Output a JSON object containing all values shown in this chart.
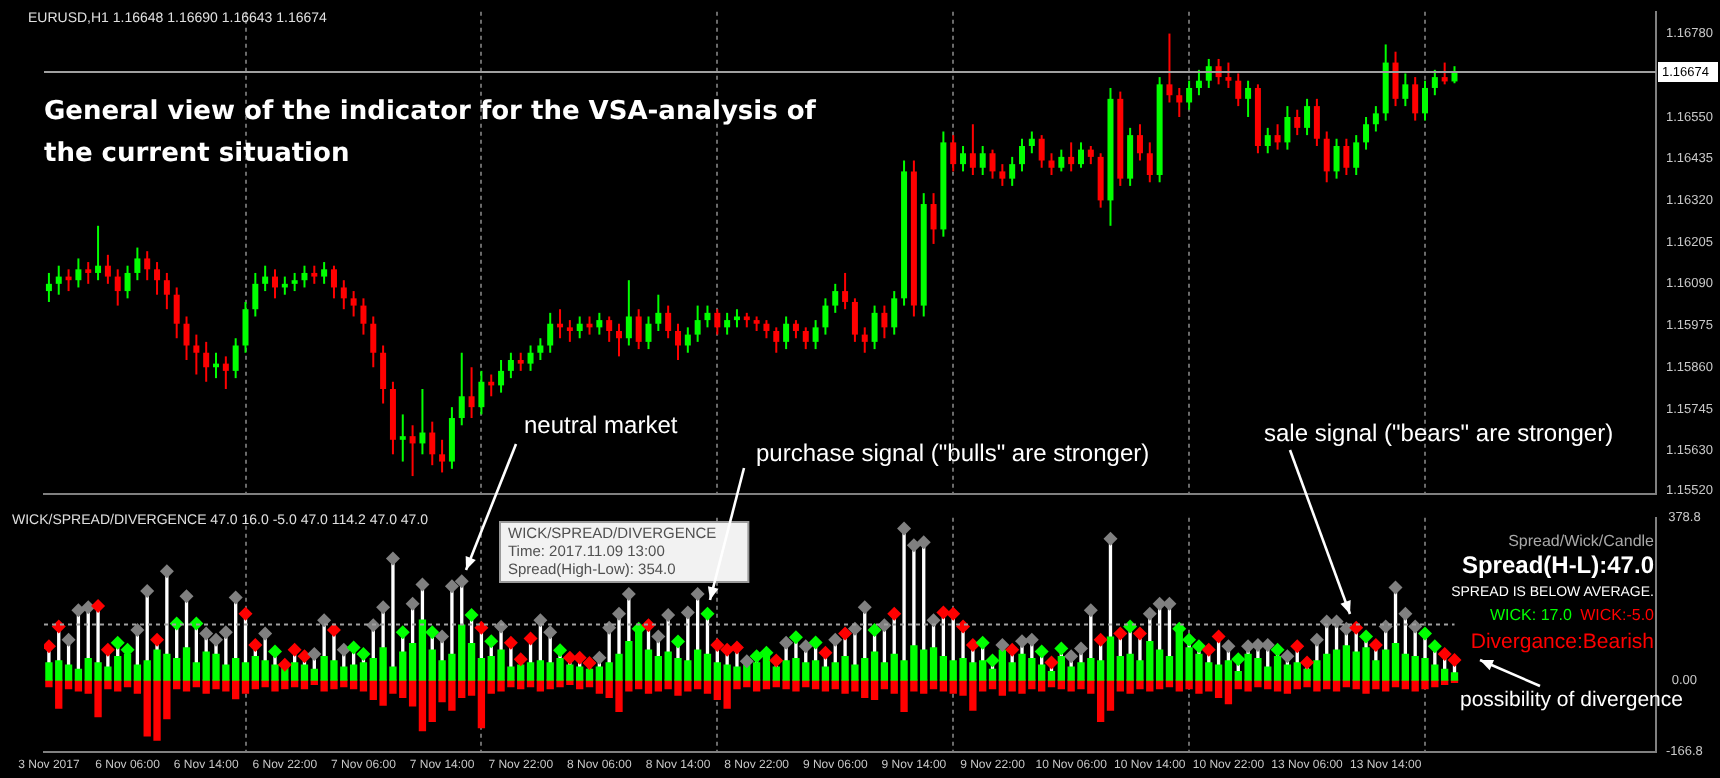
{
  "chart_data": [
    {
      "type": "candlestick",
      "title": "General view of the indicator for the VSA-analysis of the current situation",
      "subtitle": "EURUSD,H1 1.16648 1.16690 1.16643 1.16674",
      "annotations": [
        "neutral market",
        "purchase signal (\"bulls\" are stronger)",
        "sale signal (\"bears\" are stronger)"
      ],
      "categories": [
        null,
        null,
        null,
        null,
        null,
        null,
        null,
        null,
        null,
        null,
        null,
        null,
        null,
        null,
        null,
        null,
        null,
        null,
        null,
        null,
        null,
        null,
        null,
        null,
        null,
        null,
        null,
        null,
        null,
        null,
        null,
        null,
        null,
        null,
        null,
        null,
        null,
        null,
        null,
        null,
        null,
        null,
        null,
        null,
        null,
        null,
        null,
        null,
        null,
        null,
        null,
        null,
        null,
        null,
        null,
        null,
        null,
        null,
        null,
        null,
        null,
        null,
        null,
        null,
        null,
        null,
        null,
        null,
        null,
        null,
        null,
        null,
        null,
        null,
        null,
        null,
        null,
        null,
        null,
        null,
        null,
        null,
        null,
        null,
        null,
        null,
        null,
        null,
        null,
        null,
        null,
        null,
        null,
        null,
        null,
        null,
        null,
        null,
        null,
        null,
        null,
        null,
        null,
        null,
        null,
        null,
        null,
        null,
        null,
        null,
        null,
        null,
        null,
        null,
        null,
        null,
        null,
        null,
        null,
        null,
        null,
        null,
        null,
        null,
        null,
        null,
        null,
        null,
        null,
        null,
        null,
        null,
        null,
        null,
        null,
        null,
        null,
        null,
        null,
        null,
        null,
        null,
        null,
        null,
        null,
        null,
        null,
        null,
        null,
        null,
        null,
        null,
        null,
        null,
        null,
        null,
        null,
        null,
        null,
        null,
        null,
        null,
        null,
        null
      ],
      "ohlc": [
        [
          1.1607,
          1.1612,
          1.1604,
          1.1609
        ],
        [
          1.1609,
          1.1614,
          1.1606,
          1.1611
        ],
        [
          1.1611,
          1.1613,
          1.1607,
          1.161
        ],
        [
          1.161,
          1.1616,
          1.1608,
          1.1613
        ],
        [
          1.1613,
          1.1615,
          1.1609,
          1.1612
        ],
        [
          1.1612,
          1.1625,
          1.161,
          1.1614
        ],
        [
          1.1614,
          1.1617,
          1.1609,
          1.1611
        ],
        [
          1.1611,
          1.1613,
          1.1603,
          1.1607
        ],
        [
          1.1607,
          1.1614,
          1.1605,
          1.1612
        ],
        [
          1.1612,
          1.1619,
          1.161,
          1.1616
        ],
        [
          1.1616,
          1.1618,
          1.161,
          1.1613
        ],
        [
          1.1613,
          1.1615,
          1.1606,
          1.161
        ],
        [
          1.161,
          1.1612,
          1.1602,
          1.1606
        ],
        [
          1.1606,
          1.1608,
          1.1594,
          1.1598
        ],
        [
          1.1598,
          1.16,
          1.1588,
          1.1592
        ],
        [
          1.1592,
          1.1595,
          1.1584,
          1.159
        ],
        [
          1.159,
          1.1593,
          1.1582,
          1.1586
        ],
        [
          1.1586,
          1.159,
          1.1583,
          1.1587
        ],
        [
          1.1587,
          1.1589,
          1.158,
          1.1585
        ],
        [
          1.1585,
          1.1594,
          1.1583,
          1.1592
        ],
        [
          1.1592,
          1.1604,
          1.159,
          1.1602
        ],
        [
          1.1602,
          1.1612,
          1.16,
          1.1609
        ],
        [
          1.1609,
          1.1614,
          1.1607,
          1.1611
        ],
        [
          1.1611,
          1.1613,
          1.1605,
          1.1608
        ],
        [
          1.1608,
          1.1611,
          1.1606,
          1.1609
        ],
        [
          1.1609,
          1.1612,
          1.1607,
          1.161
        ],
        [
          1.161,
          1.1614,
          1.1608,
          1.1612
        ],
        [
          1.1612,
          1.1614,
          1.1609,
          1.1611
        ],
        [
          1.1611,
          1.1615,
          1.1609,
          1.1613
        ],
        [
          1.1613,
          1.1614,
          1.1605,
          1.1608
        ],
        [
          1.1608,
          1.161,
          1.1602,
          1.1605
        ],
        [
          1.1605,
          1.1607,
          1.16,
          1.1603
        ],
        [
          1.1603,
          1.1605,
          1.1595,
          1.1598
        ],
        [
          1.1598,
          1.16,
          1.1586,
          1.159
        ],
        [
          1.159,
          1.1592,
          1.1576,
          1.158
        ],
        [
          1.158,
          1.1582,
          1.1562,
          1.1566
        ],
        [
          1.1566,
          1.1573,
          1.156,
          1.1567
        ],
        [
          1.1567,
          1.157,
          1.1556,
          1.1565
        ],
        [
          1.1565,
          1.158,
          1.1562,
          1.1568
        ],
        [
          1.1568,
          1.1571,
          1.1559,
          1.1562
        ],
        [
          1.1562,
          1.1566,
          1.1557,
          1.156
        ],
        [
          1.156,
          1.1575,
          1.1558,
          1.1572
        ],
        [
          1.1572,
          1.159,
          1.157,
          1.1578
        ],
        [
          1.1578,
          1.1586,
          1.1572,
          1.1575
        ],
        [
          1.1575,
          1.1585,
          1.1573,
          1.1582
        ],
        [
          1.1582,
          1.1584,
          1.1578,
          1.1581
        ],
        [
          1.1581,
          1.1588,
          1.1579,
          1.1585
        ],
        [
          1.1585,
          1.159,
          1.1583,
          1.1588
        ],
        [
          1.1588,
          1.159,
          1.1585,
          1.1587
        ],
        [
          1.1587,
          1.1592,
          1.1585,
          1.159
        ],
        [
          1.159,
          1.1594,
          1.1588,
          1.1592
        ],
        [
          1.1592,
          1.1601,
          1.159,
          1.1598
        ],
        [
          1.1598,
          1.1602,
          1.1594,
          1.1597
        ],
        [
          1.1597,
          1.1599,
          1.1593,
          1.1596
        ],
        [
          1.1596,
          1.16,
          1.1594,
          1.1598
        ],
        [
          1.1598,
          1.16,
          1.1595,
          1.1597
        ],
        [
          1.1597,
          1.1601,
          1.1595,
          1.1599
        ],
        [
          1.1599,
          1.16,
          1.1593,
          1.1596
        ],
        [
          1.1596,
          1.1598,
          1.1589,
          1.1594
        ],
        [
          1.1594,
          1.161,
          1.1592,
          1.16
        ],
        [
          1.16,
          1.1602,
          1.1591,
          1.1593
        ],
        [
          1.1593,
          1.16,
          1.1591,
          1.1598
        ],
        [
          1.1598,
          1.1606,
          1.1596,
          1.1601
        ],
        [
          1.1601,
          1.1603,
          1.1594,
          1.1596
        ],
        [
          1.1596,
          1.1598,
          1.1588,
          1.1592
        ],
        [
          1.1592,
          1.1597,
          1.159,
          1.1595
        ],
        [
          1.1595,
          1.1603,
          1.1593,
          1.1599
        ],
        [
          1.1599,
          1.1603,
          1.1597,
          1.1601
        ],
        [
          1.1601,
          1.1602,
          1.1595,
          1.1597
        ],
        [
          1.1597,
          1.1601,
          1.1595,
          1.1599
        ],
        [
          1.1599,
          1.1602,
          1.1597,
          1.16
        ],
        [
          1.16,
          1.1601,
          1.1597,
          1.1599
        ],
        [
          1.1599,
          1.16,
          1.1596,
          1.1598
        ],
        [
          1.1598,
          1.1599,
          1.1594,
          1.1596
        ],
        [
          1.1596,
          1.1597,
          1.159,
          1.1593
        ],
        [
          1.1593,
          1.16,
          1.1591,
          1.1598
        ],
        [
          1.1598,
          1.1599,
          1.1594,
          1.1596
        ],
        [
          1.1596,
          1.1597,
          1.1591,
          1.1593
        ],
        [
          1.1593,
          1.1599,
          1.1591,
          1.1597
        ],
        [
          1.1597,
          1.1605,
          1.1595,
          1.1603
        ],
        [
          1.1603,
          1.1609,
          1.1601,
          1.1607
        ],
        [
          1.1607,
          1.1612,
          1.1602,
          1.1604
        ],
        [
          1.1604,
          1.1605,
          1.1593,
          1.1595
        ],
        [
          1.1595,
          1.1597,
          1.159,
          1.1593
        ],
        [
          1.1593,
          1.1603,
          1.1591,
          1.1601
        ],
        [
          1.1601,
          1.1603,
          1.1594,
          1.1597
        ],
        [
          1.1597,
          1.1607,
          1.1595,
          1.1605
        ],
        [
          1.1605,
          1.1643,
          1.1603,
          1.164
        ],
        [
          1.164,
          1.1643,
          1.16,
          1.1603
        ],
        [
          1.1603,
          1.1634,
          1.16,
          1.1631
        ],
        [
          1.1631,
          1.1634,
          1.162,
          1.1624
        ],
        [
          1.1624,
          1.1651,
          1.1622,
          1.1648
        ],
        [
          1.1648,
          1.165,
          1.164,
          1.1642
        ],
        [
          1.1642,
          1.1647,
          1.164,
          1.1645
        ],
        [
          1.1645,
          1.1653,
          1.1639,
          1.1641
        ],
        [
          1.1641,
          1.1647,
          1.1639,
          1.1645
        ],
        [
          1.1645,
          1.1646,
          1.1638,
          1.164
        ],
        [
          1.164,
          1.1642,
          1.1636,
          1.1638
        ],
        [
          1.1638,
          1.1644,
          1.1636,
          1.1642
        ],
        [
          1.1642,
          1.1649,
          1.164,
          1.1647
        ],
        [
          1.1647,
          1.1651,
          1.1645,
          1.1649
        ],
        [
          1.1649,
          1.165,
          1.1641,
          1.1643
        ],
        [
          1.1643,
          1.1645,
          1.1639,
          1.1641
        ],
        [
          1.1641,
          1.1646,
          1.164,
          1.1644
        ],
        [
          1.1644,
          1.1648,
          1.164,
          1.1642
        ],
        [
          1.1642,
          1.1648,
          1.1641,
          1.1646
        ],
        [
          1.1646,
          1.1647,
          1.1642,
          1.1644
        ],
        [
          1.1644,
          1.1645,
          1.163,
          1.1632
        ],
        [
          1.1632,
          1.1663,
          1.1625,
          1.166
        ],
        [
          1.166,
          1.1662,
          1.1636,
          1.1638
        ],
        [
          1.1638,
          1.1652,
          1.1636,
          1.165
        ],
        [
          1.165,
          1.1653,
          1.1643,
          1.1645
        ],
        [
          1.1645,
          1.1648,
          1.1637,
          1.1639
        ],
        [
          1.1639,
          1.1666,
          1.1637,
          1.1664
        ],
        [
          1.1664,
          1.1678,
          1.1659,
          1.1661
        ],
        [
          1.1661,
          1.1663,
          1.1655,
          1.1659
        ],
        [
          1.1659,
          1.1665,
          1.1657,
          1.1663
        ],
        [
          1.1663,
          1.1668,
          1.1661,
          1.1665
        ],
        [
          1.1665,
          1.1671,
          1.1663,
          1.1669
        ],
        [
          1.1669,
          1.1671,
          1.1664,
          1.1666
        ],
        [
          1.1666,
          1.167,
          1.1663,
          1.1665
        ],
        [
          1.1665,
          1.1667,
          1.1658,
          1.166
        ],
        [
          1.166,
          1.1665,
          1.1655,
          1.1663
        ],
        [
          1.1663,
          1.1664,
          1.1645,
          1.1647
        ],
        [
          1.1647,
          1.1652,
          1.1645,
          1.165
        ],
        [
          1.165,
          1.1653,
          1.1646,
          1.1648
        ],
        [
          1.1648,
          1.1658,
          1.1646,
          1.1655
        ],
        [
          1.1655,
          1.1657,
          1.165,
          1.1652
        ],
        [
          1.1652,
          1.166,
          1.165,
          1.1658
        ],
        [
          1.1658,
          1.166,
          1.1647,
          1.1649
        ],
        [
          1.1649,
          1.1651,
          1.1637,
          1.164
        ],
        [
          1.164,
          1.1649,
          1.1638,
          1.1647
        ],
        [
          1.1647,
          1.1649,
          1.1639,
          1.1641
        ],
        [
          1.1641,
          1.165,
          1.1639,
          1.1648
        ],
        [
          1.1648,
          1.1655,
          1.1646,
          1.1653
        ],
        [
          1.1653,
          1.1658,
          1.1651,
          1.1656
        ],
        [
          1.1656,
          1.1675,
          1.1654,
          1.167
        ],
        [
          1.167,
          1.1673,
          1.1658,
          1.166
        ],
        [
          1.166,
          1.1667,
          1.1658,
          1.1664
        ],
        [
          1.1664,
          1.1666,
          1.1654,
          1.1656
        ],
        [
          1.1656,
          1.1665,
          1.1654,
          1.1663
        ],
        [
          1.1663,
          1.1668,
          1.1661,
          1.1666
        ],
        [
          1.1666,
          1.167,
          1.1664,
          1.16648
        ],
        [
          1.16648,
          1.1669,
          1.16643,
          1.16674
        ],
        null,
        null,
        null,
        null,
        null,
        null,
        null,
        null,
        null,
        null,
        null,
        null,
        null,
        null,
        null,
        null,
        null,
        null,
        null,
        null
      ],
      "ylim": [
        1.1551,
        1.1684
      ],
      "yticks": [
        {
          "value": 1.1552,
          "label": "1.15520"
        },
        {
          "value": 1.1563,
          "label": "1.15630"
        },
        {
          "value": 1.15745,
          "label": "1.15745"
        },
        {
          "value": 1.1586,
          "label": "1.15860"
        },
        {
          "value": 1.15975,
          "label": "1.15975"
        },
        {
          "value": 1.1609,
          "label": "1.16090"
        },
        {
          "value": 1.16205,
          "label": "1.16205"
        },
        {
          "value": 1.1632,
          "label": "1.16320"
        },
        {
          "value": 1.16435,
          "label": "1.16435"
        },
        {
          "value": 1.1655,
          "label": "1.16550"
        },
        {
          "value": 1.1678,
          "label": "1.16780"
        }
      ],
      "ref_lines": [
        {
          "axis": "y",
          "value": 1.16674,
          "label": "1.16674",
          "color": "#a0a0a0"
        }
      ],
      "tick_labels": "y",
      "grid": "x"
    },
    {
      "type": "bar",
      "subtitle": "WICK/SPREAD/DIVERGENCE 47.0 16.0 -5.0 47.0 114.2 47.0 47.0",
      "annotations": [
        "Spread/Wick/Candle",
        "Spread(H-L):47.0",
        "SPREAD IS BELOW AVERAGE.",
        "WICK: 17.0",
        "WICK:-5.0",
        "Divergance:Bearish",
        "possibility of divergence",
        "WICK/SPREAD/DIVERGENCE",
        "Time: 2017.11.09 13:00",
        "Spread(High-Low): 354.0"
      ],
      "categories": [
        "3 Nov 2017",
        null,
        null,
        null,
        null,
        null,
        null,
        null,
        "6 Nov 06:00",
        null,
        null,
        null,
        null,
        null,
        null,
        null,
        "6 Nov 14:00",
        null,
        null,
        null,
        null,
        null,
        null,
        null,
        "6 Nov 22:00",
        null,
        null,
        null,
        null,
        null,
        null,
        null,
        "7 Nov 06:00",
        null,
        null,
        null,
        null,
        null,
        null,
        null,
        "7 Nov 14:00",
        null,
        null,
        null,
        null,
        null,
        null,
        null,
        "7 Nov 22:00",
        null,
        null,
        null,
        null,
        null,
        null,
        null,
        "8 Nov 06:00",
        null,
        null,
        null,
        null,
        null,
        null,
        null,
        "8 Nov 14:00",
        null,
        null,
        null,
        null,
        null,
        null,
        null,
        "8 Nov 22:00",
        null,
        null,
        null,
        null,
        null,
        null,
        null,
        "9 Nov 06:00",
        null,
        null,
        null,
        null,
        null,
        null,
        null,
        "9 Nov 14:00",
        null,
        null,
        null,
        null,
        null,
        null,
        null,
        "9 Nov 22:00",
        null,
        null,
        null,
        null,
        null,
        null,
        null,
        "10 Nov 06:00",
        null,
        null,
        null,
        null,
        null,
        null,
        null,
        "10 Nov 14:00",
        null,
        null,
        null,
        null,
        null,
        null,
        null,
        "10 Nov 22:00",
        null,
        null,
        null,
        null,
        null,
        null,
        null,
        "13 Nov 06:00",
        null,
        null,
        null,
        null,
        null,
        null,
        null,
        "13 Nov 14:00",
        null,
        null,
        null,
        null,
        null,
        null,
        null,
        null,
        null,
        null,
        null,
        null,
        null,
        null,
        null,
        null,
        null,
        null,
        null,
        null,
        null,
        null,
        null,
        null,
        null,
        null,
        null
      ],
      "series": [
        {
          "type": "lollipop",
          "color": "#ffffff",
          "values": [
            79,
            125,
            94,
            163,
            170,
            173,
            71,
            87,
            71,
            117,
            208,
            94,
            254,
            132,
            196,
            132,
            109,
            94,
            112,
            193,
            155,
            82,
            109,
            67,
            36,
            71,
            56,
            61,
            140,
            117,
            71,
            76,
            61,
            128,
            170,
            284,
            112,
            178,
            223,
            112,
            102,
            219,
            231,
            152,
            122,
            91,
            125,
            87,
            49,
            97,
            140,
            112,
            70,
            52,
            52,
            40,
            52,
            122,
            155,
            201,
            120,
            128,
            102,
            152,
            90,
            158,
            201,
            155,
            82,
            71,
            76,
            44,
            56,
            64,
            46,
            87,
            100,
            79,
            88,
            64,
            94,
            109,
            120,
            170,
            117,
            128,
            155,
            354,
            315,
            322,
            140,
            158,
            155,
            125,
            82,
            87,
            46,
            82,
            71,
            91,
            94,
            67,
            41,
            74,
            56,
            74,
            163,
            94,
            330,
            109,
            125,
            109,
            155,
            178,
            178,
            120,
            94,
            79,
            71,
            102,
            79,
            49,
            79,
            82,
            82,
            71,
            56,
            79,
            41,
            94,
            137,
            137,
            120,
            122,
            102,
            82,
            125,
            216,
            155,
            125,
            109,
            79,
            61,
            47,
            null,
            null,
            null,
            null,
            null,
            null,
            null,
            null,
            null,
            null,
            null,
            null,
            null,
            null,
            null,
            null,
            null,
            null,
            null,
            null
          ],
          "colors": [
            "#ff0000",
            "#ff0000",
            "#808080",
            "#808080",
            "#808080",
            "#ff0000",
            "#ff0000",
            "#00ff00",
            "#00ff00",
            "#808080",
            "#808080",
            "#ff0000",
            "#808080",
            "#00ff00",
            "#808080",
            "#00ff00",
            "#808080",
            "#808080",
            "#808080",
            "#808080",
            "#ff0000",
            "#ff0000",
            "#808080",
            "#00ff00",
            "#ff0000",
            "#ff0000",
            "#ff0000",
            "#808080",
            "#808080",
            "#ff0000",
            "#808080",
            "#00ff00",
            "#00ff00",
            "#808080",
            "#808080",
            "#808080",
            "#00ff00",
            "#808080",
            "#808080",
            "#00ff00",
            "#808080",
            "#808080",
            "#808080",
            "#00ff00",
            "#ff0000",
            "#00ff00",
            "#808080",
            "#ff0000",
            "#ff0000",
            "#ff0000",
            "#808080",
            "#808080",
            "#00ff00",
            "#ff0000",
            "#ff0000",
            "#ff0000",
            "#808080",
            "#808080",
            "#808080",
            "#808080",
            "#00ff00",
            "#ff0000",
            "#808080",
            "#808080",
            "#00ff00",
            "#808080",
            "#808080",
            "#00ff00",
            "#ff0000",
            "#ff0000",
            "#ff0000",
            "#808080",
            "#00ff00",
            "#00ff00",
            "#ff0000",
            "#808080",
            "#00ff00",
            "#808080",
            "#00ff00",
            "#ff0000",
            "#808080",
            "#ff0000",
            "#808080",
            "#808080",
            "#00ff00",
            "#808080",
            "#ff0000",
            "#808080",
            "#808080",
            "#808080",
            "#808080",
            "#ff0000",
            "#ff0000",
            "#ff0000",
            "#ff0000",
            "#00ff00",
            "#00ff00",
            "#808080",
            "#ff0000",
            "#808080",
            "#808080",
            "#00ff00",
            "#ff0000",
            "#00ff00",
            "#808080",
            "#808080",
            "#808080",
            "#ff0000",
            "#808080",
            "#ff0000",
            "#00ff00",
            "#ff0000",
            "#808080",
            "#808080",
            "#808080",
            "#00ff00",
            "#00ff00",
            "#00ff00",
            "#ff0000",
            "#ff0000",
            "#808080",
            "#00ff00",
            "#808080",
            "#808080",
            "#808080",
            "#00ff00",
            "#808080",
            "#ff0000",
            "#ff0000",
            "#808080",
            "#808080",
            "#808080",
            "#808080",
            "#ff0000",
            "#00ff00",
            "#ff0000",
            "#808080",
            "#808080",
            "#808080",
            "#808080",
            "#00ff00",
            "#00ff00",
            "#ff0000",
            "#ff0000",
            null,
            null,
            null,
            null,
            null,
            null,
            null,
            null,
            null,
            null,
            null,
            null,
            null,
            null,
            null,
            null,
            null,
            null,
            null,
            null
          ]
        },
        {
          "type": "bar",
          "color": "#00ff00",
          "values": [
            40,
            45,
            35,
            25,
            50,
            40,
            30,
            55,
            60,
            35,
            45,
            70,
            60,
            50,
            75,
            40,
            65,
            60,
            35,
            50,
            40,
            55,
            45,
            35,
            30,
            40,
            35,
            25,
            55,
            45,
            30,
            35,
            40,
            50,
            75,
            30,
            65,
            85,
            140,
            70,
            45,
            60,
            128,
            85,
            50,
            55,
            70,
            30,
            35,
            40,
            45,
            40,
            50,
            35,
            30,
            25,
            30,
            40,
            60,
            90,
            117,
            70,
            55,
            65,
            50,
            45,
            70,
            60,
            40,
            35,
            30,
            35,
            40,
            55,
            30,
            45,
            50,
            40,
            45,
            30,
            40,
            55,
            35,
            50,
            65,
            40,
            60,
            45,
            80,
            70,
            75,
            55,
            45,
            50,
            40,
            45,
            25,
            70,
            40,
            60,
            50,
            35,
            20,
            55,
            30,
            40,
            50,
            45,
            100,
            55,
            60,
            45,
            90,
            70,
            55,
            128,
            75,
            60,
            40,
            35,
            45,
            20,
            60,
            50,
            30,
            55,
            35,
            40,
            25,
            45,
            60,
            70,
            80,
            65,
            75,
            45,
            70,
            85,
            60,
            55,
            50,
            35,
            25,
            17,
            null,
            null,
            null,
            null,
            null,
            null,
            null,
            null,
            null,
            null,
            null,
            null,
            null,
            null,
            null,
            null,
            null,
            null,
            null,
            null
          ]
        },
        {
          "type": "bar",
          "color": "#ff0000",
          "values": [
            -15,
            -65,
            -20,
            -25,
            -30,
            -85,
            -20,
            -25,
            -15,
            -30,
            -130,
            -140,
            -90,
            -20,
            -25,
            -15,
            -30,
            -20,
            -25,
            -43,
            -30,
            -20,
            -15,
            -25,
            -20,
            -15,
            -20,
            -10,
            -25,
            -20,
            -15,
            -20,
            -25,
            -45,
            -58,
            -30,
            -40,
            -60,
            -118,
            -96,
            -50,
            -70,
            -40,
            -35,
            -111,
            -30,
            -25,
            -15,
            -20,
            -15,
            -25,
            -20,
            -15,
            -10,
            -20,
            -15,
            -30,
            -40,
            -73,
            -25,
            -20,
            -30,
            -25,
            -20,
            -35,
            -25,
            -20,
            -30,
            -45,
            -65,
            -20,
            -15,
            -25,
            -20,
            -15,
            -20,
            -25,
            -15,
            -20,
            -25,
            -20,
            -30,
            -25,
            -40,
            -45,
            -20,
            -30,
            -73,
            -25,
            -30,
            -20,
            -25,
            -30,
            -35,
            -70,
            -25,
            -20,
            -35,
            -25,
            -30,
            -20,
            -25,
            -15,
            -20,
            -25,
            -20,
            -30,
            -96,
            -70,
            -25,
            -30,
            -20,
            -25,
            -20,
            -15,
            -25,
            -20,
            -30,
            -25,
            -40,
            -55,
            -20,
            -25,
            -15,
            -20,
            -25,
            -30,
            -20,
            -15,
            -25,
            -20,
            -25,
            -15,
            -20,
            -30,
            -20,
            -25,
            -15,
            -20,
            -25,
            -20,
            -15,
            -10,
            -5,
            null,
            null,
            null,
            null,
            null,
            null,
            null,
            null,
            null,
            null,
            null,
            null,
            null,
            null,
            null,
            null,
            null,
            null,
            null,
            null
          ]
        }
      ],
      "stacked": true,
      "marker": "diamond",
      "ylim": [
        -166.8,
        378.8
      ],
      "yticks": [
        {
          "value": -166.8,
          "label": "-166.8"
        },
        {
          "value": 0,
          "label": "0.00"
        },
        {
          "value": 378.8,
          "label": "378.8"
        }
      ],
      "ref_lines": [
        {
          "axis": "y",
          "value": 130,
          "color": "#a0a0a0",
          "line_style": "dotted"
        }
      ],
      "grid": "x"
    }
  ]
}
